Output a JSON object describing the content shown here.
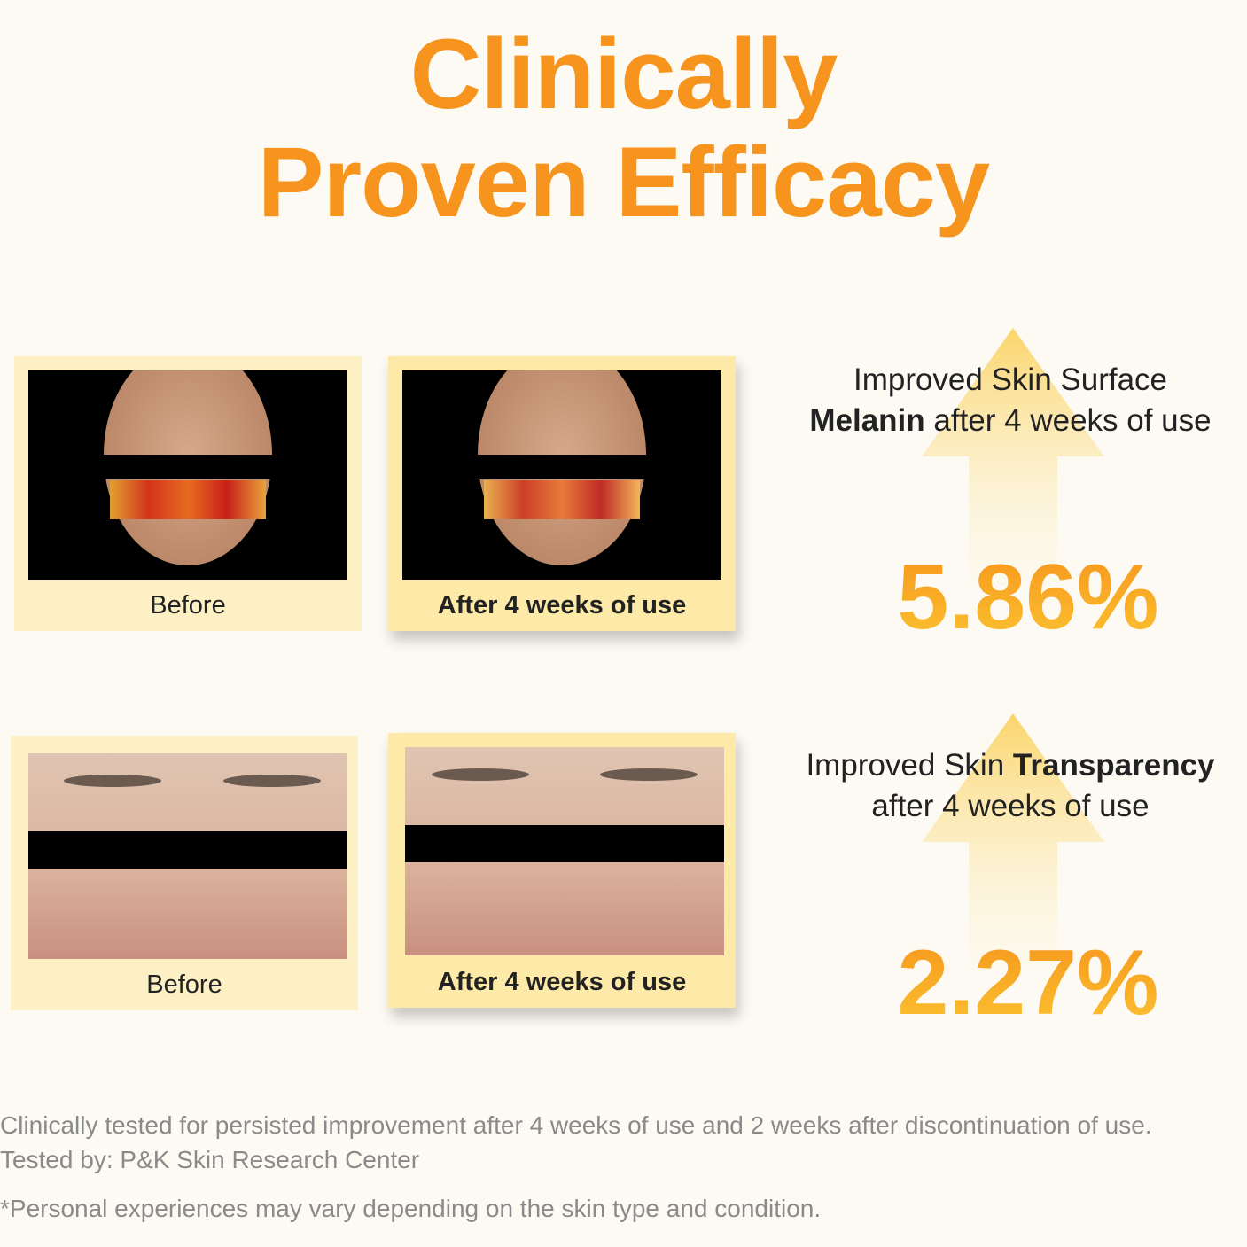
{
  "header": {
    "title_lines": [
      "Clinically",
      "Proven Efficacy"
    ]
  },
  "results": [
    {
      "before_label": "Before",
      "after_label": "After 4 weeks of use",
      "description": [
        {
          "text": "Improved Skin Surface",
          "bold": false
        },
        {
          "text": "Melanin",
          "bold": true
        },
        {
          "text": "after 4 weeks of use",
          "bold": false
        }
      ],
      "percentage": "5.86%"
    },
    {
      "before_label": "Before",
      "after_label": "After 4 weeks of use",
      "description": [
        {
          "text": "Improved Skin",
          "bold": false
        },
        {
          "text": "Transparency",
          "bold": true
        },
        {
          "text": "after 4 weeks of use",
          "bold": false
        }
      ],
      "percentage": "2.27%"
    }
  ],
  "footer": {
    "lines": [
      "Clinically tested for persisted improvement after 4 weeks of use and 2 weeks after discontinuation of use.",
      "Tested by: P&K Skin Research Center",
      "*Personal experiences may vary depending on the skin type and condition."
    ]
  }
}
